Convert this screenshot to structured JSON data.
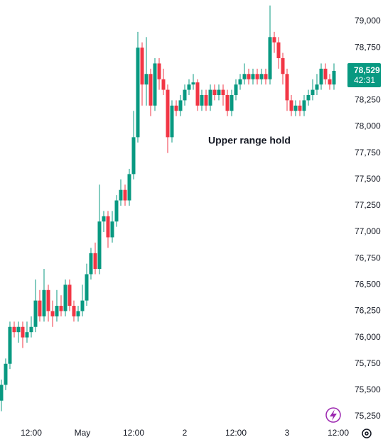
{
  "chart_data": {
    "type": "candlestick",
    "annotation": "Upper range hold",
    "up_color": "#089981",
    "down_color": "#f23645",
    "open": [
      75400,
      75550,
      75750,
      76100,
      76050,
      76100,
      76000,
      76050,
      76100,
      76350,
      76200,
      76450,
      76250,
      76200,
      76300,
      76250,
      76500,
      76300,
      76200,
      76250,
      76350,
      76600,
      76800,
      76650,
      77100,
      77150,
      76950,
      77100,
      77300,
      77400,
      77300,
      77550,
      77900,
      78750,
      78400,
      78500,
      78200,
      78600,
      78450,
      78350,
      77900,
      78200,
      78150,
      78250,
      78350,
      78400,
      78420,
      78200,
      78300,
      78200,
      78350,
      78300,
      78350,
      78300,
      78150,
      78300,
      78400,
      78450,
      78500,
      78450,
      78500,
      78450,
      78500,
      78450,
      78850,
      78800,
      78650,
      78500,
      78250,
      78150,
      78200,
      78150,
      78250,
      78300,
      78350,
      78400,
      78550,
      78450,
      78400
    ],
    "high": [
      75600,
      75800,
      76150,
      76150,
      76150,
      76150,
      76150,
      76200,
      76550,
      76450,
      76650,
      76500,
      76350,
      76450,
      76400,
      76550,
      76550,
      76350,
      76300,
      76500,
      76700,
      76850,
      76900,
      77450,
      77200,
      77200,
      77200,
      77350,
      77500,
      77450,
      77600,
      78150,
      78900,
      78800,
      78850,
      78550,
      78650,
      78650,
      78550,
      78400,
      78250,
      78250,
      78300,
      78400,
      78450,
      78500,
      78450,
      78350,
      78350,
      78400,
      78400,
      78400,
      78400,
      78350,
      78350,
      78450,
      78500,
      78600,
      78550,
      78550,
      78550,
      78550,
      78550,
      79150,
      78900,
      78850,
      78700,
      78550,
      78300,
      78250,
      78250,
      78300,
      78350,
      78450,
      78500,
      78600,
      78600,
      78500,
      78600
    ],
    "low": [
      75300,
      75500,
      75700,
      76000,
      75950,
      75900,
      75950,
      76000,
      76050,
      76150,
      76150,
      76150,
      76100,
      76150,
      76200,
      76200,
      76250,
      76150,
      76150,
      76200,
      76300,
      76550,
      76600,
      76600,
      77000,
      76850,
      76900,
      77050,
      77250,
      77250,
      77250,
      77500,
      77850,
      78200,
      78200,
      78100,
      78150,
      78350,
      78300,
      77750,
      77850,
      78100,
      78100,
      78200,
      78300,
      78350,
      78150,
      78150,
      78150,
      78150,
      78250,
      78250,
      78200,
      78100,
      78100,
      78250,
      78350,
      78400,
      78400,
      78400,
      78400,
      78400,
      78400,
      78400,
      78700,
      78550,
      78400,
      78150,
      78100,
      78100,
      78100,
      78100,
      78200,
      78250,
      78300,
      78350,
      78400,
      78350,
      78350
    ],
    "close": [
      75550,
      75750,
      76100,
      76050,
      76100,
      76000,
      76050,
      76100,
      76350,
      76200,
      76450,
      76250,
      76200,
      76300,
      76250,
      76500,
      76300,
      76200,
      76250,
      76350,
      76600,
      76800,
      76650,
      77100,
      77150,
      76950,
      77100,
      77300,
      77400,
      77300,
      77550,
      77900,
      78750,
      78400,
      78500,
      78200,
      78600,
      78450,
      78350,
      77900,
      78200,
      78150,
      78250,
      78350,
      78400,
      78420,
      78200,
      78300,
      78200,
      78350,
      78300,
      78350,
      78300,
      78150,
      78300,
      78400,
      78450,
      78500,
      78450,
      78500,
      78450,
      78500,
      78450,
      78850,
      78800,
      78650,
      78500,
      78250,
      78150,
      78200,
      78150,
      78250,
      78300,
      78350,
      78400,
      78550,
      78450,
      78400,
      78529
    ],
    "last_price_label": "78,529",
    "countdown": "42:31",
    "xlim": [
      -0.33,
      81
    ],
    "xticks": [
      {
        "value": 7,
        "label": "12:00"
      },
      {
        "value": 19,
        "label": "May"
      },
      {
        "value": 31,
        "label": "12:00"
      },
      {
        "value": 43,
        "label": "2"
      },
      {
        "value": 55,
        "label": "12:00"
      },
      {
        "value": 67,
        "label": "3"
      },
      {
        "value": 79,
        "label": "12:00"
      }
    ],
    "ylim": [
      75176,
      79202
    ],
    "yticks": [
      {
        "value": 75250,
        "label": "75,250"
      },
      {
        "value": 75500,
        "label": "75,500"
      },
      {
        "value": 75750,
        "label": "75,750"
      },
      {
        "value": 76000,
        "label": "76,000"
      },
      {
        "value": 76250,
        "label": "76,250"
      },
      {
        "value": 76500,
        "label": "76,500"
      },
      {
        "value": 76750,
        "label": "76,750"
      },
      {
        "value": 77000,
        "label": "77,000"
      },
      {
        "value": 77250,
        "label": "77,250"
      },
      {
        "value": 77500,
        "label": "77,500"
      },
      {
        "value": 77750,
        "label": "77,750"
      },
      {
        "value": 78000,
        "label": "78,000"
      },
      {
        "value": 78250,
        "label": "78,250"
      },
      {
        "value": 78500,
        "label": "78,500"
      },
      {
        "value": 78750,
        "label": "78,750"
      },
      {
        "value": 79000,
        "label": "79,000"
      }
    ],
    "grid": false
  }
}
